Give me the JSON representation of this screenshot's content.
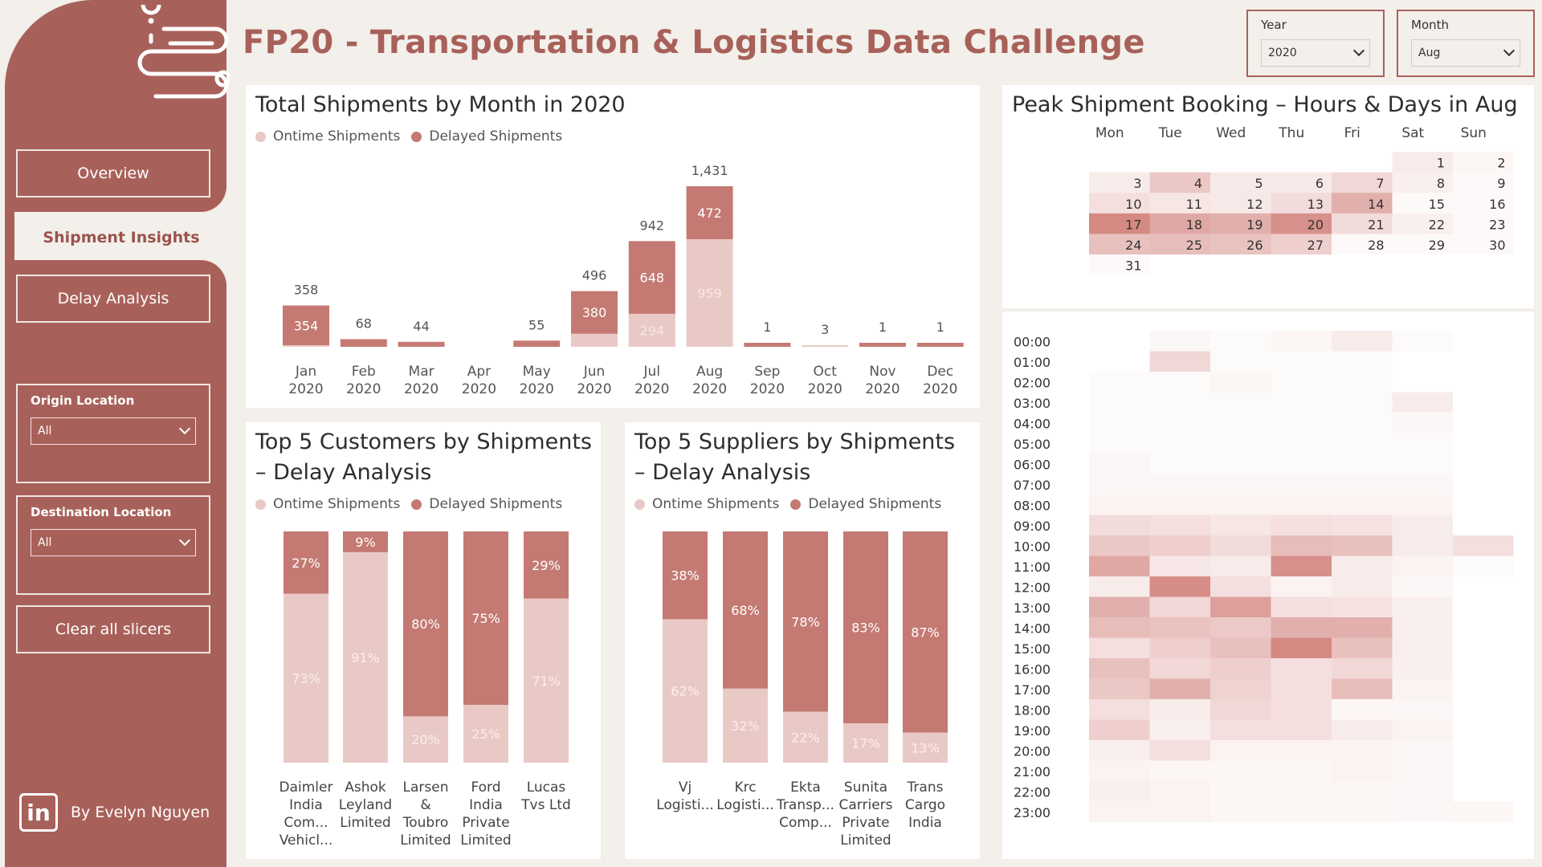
{
  "colors": {
    "sidebar": "#a8615a",
    "ontime": "#e9c9c6",
    "delayed": "#c47a73",
    "heat_base": "#c6615a"
  },
  "header": {
    "title": "FP20 - Transportation & Logistics Data Challenge"
  },
  "filters": {
    "year": {
      "label": "Year",
      "value": "2020"
    },
    "month": {
      "label": "Month",
      "value": "Aug"
    }
  },
  "sidebar": {
    "nav": [
      {
        "label": "Overview"
      },
      {
        "label": "Shipment Insights"
      },
      {
        "label": "Delay Analysis"
      }
    ],
    "origin": {
      "label": "Origin Location",
      "value": "All"
    },
    "destination": {
      "label": "Destination Location",
      "value": "All"
    },
    "clear_label": "Clear all slicers",
    "author": "By Evelyn Nguyen",
    "linkedin_icon": "linkedin-icon",
    "logo_icon": "location-route-icon"
  },
  "legend": {
    "ontime": "Ontime Shipments",
    "delayed": "Delayed Shipments"
  },
  "chart_data": [
    {
      "type": "bar",
      "title": "Total Shipments by Month in 2020",
      "categories": [
        "Jan 2020",
        "Feb 2020",
        "Mar 2020",
        "Apr 2020",
        "May 2020",
        "Jun 2020",
        "Jul 2020",
        "Aug 2020",
        "Sep 2020",
        "Oct 2020",
        "Nov 2020",
        "Dec 2020"
      ],
      "totals": [
        358,
        68,
        44,
        null,
        55,
        496,
        942,
        1431,
        1,
        3,
        1,
        1
      ],
      "series": [
        {
          "name": "Ontime Shipments",
          "values": [
            4,
            0,
            0,
            0,
            0,
            116,
            294,
            959,
            0,
            3,
            0,
            0
          ]
        },
        {
          "name": "Delayed Shipments",
          "values": [
            354,
            68,
            44,
            0,
            55,
            380,
            648,
            472,
            1,
            0,
            1,
            1
          ]
        }
      ],
      "labels": {
        "ontime": [
          null,
          null,
          null,
          null,
          null,
          null,
          "294",
          "959",
          null,
          null,
          null,
          null
        ],
        "delayed": [
          "354",
          null,
          null,
          null,
          null,
          "380",
          "648",
          "472",
          null,
          null,
          null,
          null
        ],
        "totals": [
          "358",
          "68",
          "44",
          null,
          "55",
          "496",
          "942",
          "1,431",
          "1",
          "3",
          "1",
          "1"
        ]
      }
    },
    {
      "type": "bar",
      "title": "Top 5 Customers by Shipments – Delay Analysis",
      "categories": [
        "Daimler India Com... Vehicl...",
        "Ashok Leyland Limited",
        "Larsen & Toubro Limited",
        "Ford India Private Limited",
        "Lucas Tvs Ltd"
      ],
      "category_lines": [
        [
          "Daimler",
          "India",
          "Com...",
          "Vehicl..."
        ],
        [
          "Ashok",
          "Leyland",
          "Limited"
        ],
        [
          "Larsen",
          "&",
          "Toubro",
          "Limited"
        ],
        [
          "Ford",
          "India",
          "Private",
          "Limited"
        ],
        [
          "Lucas",
          "Tvs Ltd"
        ]
      ],
      "series": [
        {
          "name": "Ontime Shipments",
          "values": [
            73,
            91,
            20,
            25,
            71
          ]
        },
        {
          "name": "Delayed Shipments",
          "values": [
            27,
            9,
            80,
            75,
            29
          ]
        }
      ],
      "labels": {
        "ontime": [
          "73%",
          "91%",
          "20%",
          "25%",
          "71%"
        ],
        "delayed": [
          "27%",
          "9%",
          "80%",
          "75%",
          "29%"
        ]
      }
    },
    {
      "type": "bar",
      "title": "Top 5 Suppliers by Shipments – Delay Analysis",
      "categories": [
        "Vj Logisti...",
        "Krc Logisti...",
        "Ekta Transp... Comp...",
        "Sunita Carriers Private Limited",
        "Trans Cargo India"
      ],
      "category_lines": [
        [
          "Vj",
          "Logisti..."
        ],
        [
          "Krc",
          "Logisti..."
        ],
        [
          "Ekta",
          "Transp...",
          "Comp..."
        ],
        [
          "Sunita",
          "Carriers",
          "Private",
          "Limited"
        ],
        [
          "Trans",
          "Cargo",
          "India"
        ]
      ],
      "series": [
        {
          "name": "Ontime Shipments",
          "values": [
            62,
            32,
            22,
            17,
            13
          ]
        },
        {
          "name": "Delayed Shipments",
          "values": [
            38,
            68,
            78,
            83,
            87
          ]
        }
      ],
      "labels": {
        "ontime": [
          "62%",
          "32%",
          "22%",
          "17%",
          "13%"
        ],
        "delayed": [
          "38%",
          "68%",
          "78%",
          "83%",
          "87%"
        ]
      }
    },
    {
      "type": "heatmap",
      "title": "Peak Shipment Booking – Hours & Days in Aug",
      "days": [
        "Mon",
        "Tue",
        "Wed",
        "Thu",
        "Fri",
        "Sat",
        "Sun"
      ],
      "calendar": {
        "weeks": [
          [
            null,
            null,
            null,
            null,
            null,
            1,
            2
          ],
          [
            3,
            4,
            5,
            6,
            7,
            8,
            9
          ],
          [
            10,
            11,
            12,
            13,
            14,
            15,
            16
          ],
          [
            17,
            18,
            19,
            20,
            21,
            22,
            23
          ],
          [
            24,
            25,
            26,
            27,
            28,
            29,
            30
          ],
          [
            31,
            null,
            null,
            null,
            null,
            null,
            null
          ]
        ],
        "intensity": [
          [
            null,
            null,
            null,
            null,
            null,
            0.12,
            0.06
          ],
          [
            0.12,
            0.35,
            0.14,
            0.14,
            0.25,
            0.1,
            0.0
          ],
          [
            0.2,
            0.16,
            0.14,
            0.22,
            0.5,
            0.0,
            0.0
          ],
          [
            0.75,
            0.55,
            0.5,
            0.7,
            0.22,
            0.1,
            0.0
          ],
          [
            0.4,
            0.42,
            0.38,
            0.3,
            0.0,
            0.0,
            0.0
          ],
          [
            0.0,
            null,
            null,
            null,
            null,
            null,
            null
          ]
        ]
      },
      "hours": [
        "00:00",
        "01:00",
        "02:00",
        "03:00",
        "04:00",
        "05:00",
        "06:00",
        "07:00",
        "08:00",
        "09:00",
        "10:00",
        "11:00",
        "12:00",
        "13:00",
        "14:00",
        "15:00",
        "16:00",
        "17:00",
        "18:00",
        "19:00",
        "20:00",
        "21:00",
        "22:00",
        "23:00"
      ],
      "hour_intensity": [
        [
          0,
          0.05,
          0.03,
          0.06,
          0.12,
          0.03,
          0
        ],
        [
          0,
          0.25,
          0.03,
          0.03,
          0.03,
          0,
          0
        ],
        [
          0.03,
          0.03,
          0.06,
          0.03,
          0.03,
          0,
          0
        ],
        [
          0.03,
          0.03,
          0.03,
          0.03,
          0.03,
          0.12,
          0
        ],
        [
          0.03,
          0.03,
          0.03,
          0.03,
          0.03,
          0.05,
          0
        ],
        [
          0.03,
          0.03,
          0.03,
          0.03,
          0.03,
          0.03,
          0
        ],
        [
          0.05,
          0.03,
          0.03,
          0.03,
          0.03,
          0.03,
          0
        ],
        [
          0.05,
          0.05,
          0.05,
          0.05,
          0.05,
          0.05,
          0
        ],
        [
          0.08,
          0.08,
          0.08,
          0.08,
          0.08,
          0.08,
          0
        ],
        [
          0.22,
          0.2,
          0.16,
          0.2,
          0.18,
          0.12,
          0
        ],
        [
          0.35,
          0.3,
          0.22,
          0.42,
          0.4,
          0.12,
          0.2
        ],
        [
          0.55,
          0.15,
          0.12,
          0.7,
          0.12,
          0.08,
          0.03
        ],
        [
          0.12,
          0.72,
          0.2,
          0.08,
          0.12,
          0.05,
          0
        ],
        [
          0.5,
          0.25,
          0.6,
          0.2,
          0.18,
          0.1,
          0
        ],
        [
          0.42,
          0.38,
          0.34,
          0.5,
          0.5,
          0.1,
          0
        ],
        [
          0.2,
          0.3,
          0.4,
          0.75,
          0.4,
          0.1,
          0
        ],
        [
          0.4,
          0.25,
          0.3,
          0.2,
          0.25,
          0.1,
          0
        ],
        [
          0.35,
          0.5,
          0.28,
          0.2,
          0.42,
          0.08,
          0
        ],
        [
          0.2,
          0.12,
          0.25,
          0.2,
          0.06,
          0.05,
          0
        ],
        [
          0.3,
          0.1,
          0.2,
          0.2,
          0.12,
          0.08,
          0
        ],
        [
          0.1,
          0.2,
          0.08,
          0.08,
          0.08,
          0.05,
          0
        ],
        [
          0.08,
          0.06,
          0.06,
          0.06,
          0.08,
          0.05,
          0
        ],
        [
          0.1,
          0.08,
          0.06,
          0.06,
          0.06,
          0.05,
          0
        ],
        [
          0.08,
          0.08,
          0.06,
          0.06,
          0.06,
          0.05,
          0.06
        ]
      ]
    }
  ]
}
